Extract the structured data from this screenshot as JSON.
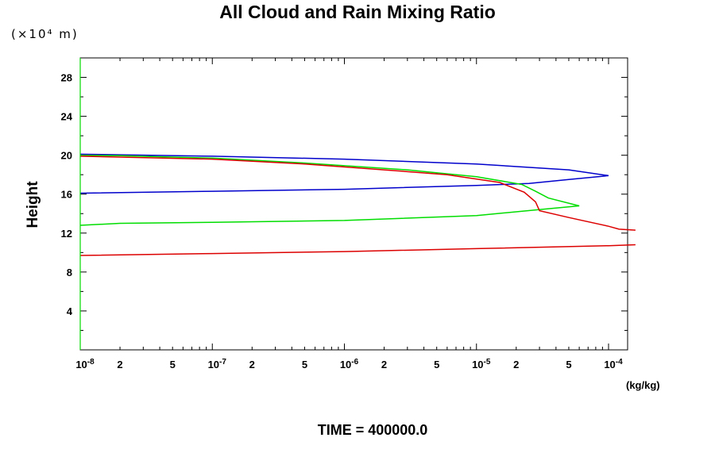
{
  "chart_data": {
    "type": "line",
    "title": "All Cloud and Rain Mixing Ratio",
    "ylabel": "Height",
    "yunit": "(×10⁴ m)",
    "xunit": "(kg/kg)",
    "footer": "TIME = 400000.0",
    "xscale": "log",
    "xlim": [
      1e-08,
      0.00016
    ],
    "ylim": [
      0,
      30
    ],
    "yticks": [
      4,
      8,
      12,
      16,
      20,
      24,
      28
    ],
    "xtick_labels": [
      {
        "x": 1e-08,
        "mant": "10",
        "exp": "-8"
      },
      {
        "x": 2e-08,
        "text": "2"
      },
      {
        "x": 5e-08,
        "text": "5"
      },
      {
        "x": 1e-07,
        "mant": "10",
        "exp": "-7"
      },
      {
        "x": 2e-07,
        "text": "2"
      },
      {
        "x": 5e-07,
        "text": "5"
      },
      {
        "x": 1e-06,
        "mant": "10",
        "exp": "-6"
      },
      {
        "x": 2e-06,
        "text": "2"
      },
      {
        "x": 5e-06,
        "text": "5"
      },
      {
        "x": 1e-05,
        "mant": "10",
        "exp": "-5"
      },
      {
        "x": 2e-05,
        "text": "2"
      },
      {
        "x": 5e-05,
        "text": "5"
      },
      {
        "x": 0.0001,
        "mant": "10",
        "exp": "-4"
      }
    ],
    "grid": false,
    "series": [
      {
        "color": "#0000cc",
        "points": [
          [
            1e-08,
            16.1
          ],
          [
            1e-07,
            16.3
          ],
          [
            1e-06,
            16.5
          ],
          [
            1e-05,
            16.9
          ],
          [
            2.5e-05,
            17.1
          ],
          [
            5e-05,
            17.5
          ],
          [
            0.0001,
            17.9
          ],
          [
            5e-05,
            18.5
          ],
          [
            1e-05,
            19.1
          ],
          [
            1e-06,
            19.6
          ],
          [
            1e-07,
            19.9
          ],
          [
            2e-08,
            20.05
          ],
          [
            1e-08,
            20.1
          ]
        ]
      },
      {
        "color": "#00dd00",
        "points": [
          [
            1e-08,
            12.8
          ],
          [
            2e-08,
            13.0
          ],
          [
            1e-07,
            13.1
          ],
          [
            1e-06,
            13.3
          ],
          [
            1e-05,
            13.8
          ],
          [
            3.5e-05,
            14.5
          ],
          [
            6e-05,
            14.8
          ],
          [
            3.5e-05,
            15.6
          ],
          [
            2.8e-05,
            16.3
          ],
          [
            2.2e-05,
            17.0
          ],
          [
            1e-05,
            17.8
          ],
          [
            3e-06,
            18.5
          ],
          [
            5e-07,
            19.2
          ],
          [
            1e-07,
            19.7
          ],
          [
            2e-08,
            19.95
          ],
          [
            1e-08,
            20.0
          ]
        ]
      },
      {
        "color": "#dd0000",
        "points": [
          [
            1e-08,
            9.7
          ],
          [
            1e-07,
            9.9
          ],
          [
            1e-06,
            10.1
          ],
          [
            1e-05,
            10.4
          ],
          [
            0.0001,
            10.7
          ],
          [
            0.00016,
            10.8
          ]
        ]
      },
      {
        "color": "#dd0000",
        "points": [
          [
            1e-08,
            19.9
          ],
          [
            1e-07,
            19.6
          ],
          [
            5e-07,
            19.1
          ],
          [
            2e-06,
            18.5
          ],
          [
            6e-06,
            18.0
          ],
          [
            1.5e-05,
            17.2
          ],
          [
            2.3e-05,
            16.2
          ],
          [
            2.8e-05,
            15.2
          ],
          [
            3e-05,
            14.3
          ],
          [
            5e-05,
            13.6
          ],
          [
            0.0001,
            12.7
          ],
          [
            0.00012,
            12.4
          ],
          [
            0.00016,
            12.3
          ]
        ]
      }
    ]
  }
}
